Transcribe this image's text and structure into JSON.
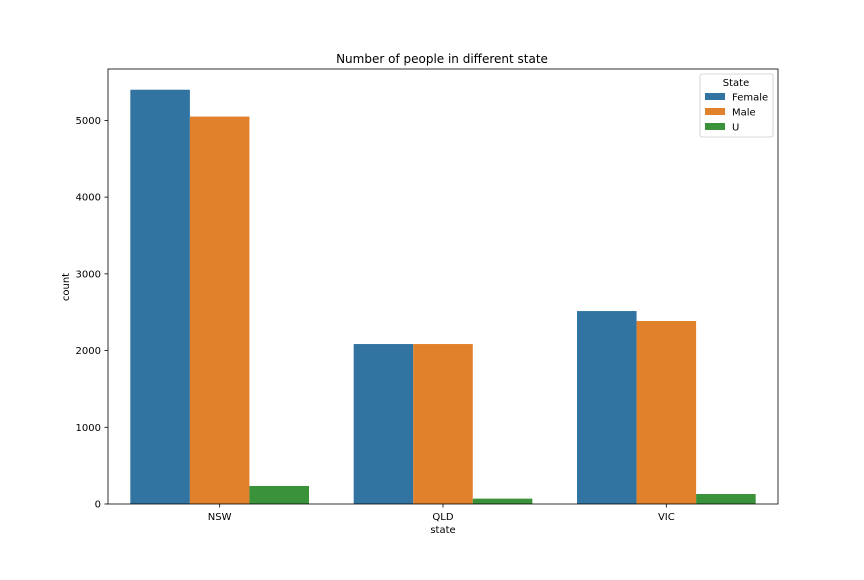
{
  "chart_data": {
    "type": "bar",
    "title": "Number of people in different state",
    "xlabel": "state",
    "ylabel": "count",
    "categories": [
      "NSW",
      "QLD",
      "VIC"
    ],
    "series": [
      {
        "name": "Female",
        "color": "#3274a1",
        "values": [
          5400,
          2085,
          2515
        ]
      },
      {
        "name": "Male",
        "color": "#e1812c",
        "values": [
          5050,
          2085,
          2385
        ]
      },
      {
        "name": "U",
        "color": "#3a923a",
        "values": [
          235,
          70,
          130
        ]
      }
    ],
    "ylim": [
      0,
      5670
    ],
    "yticks": [
      0,
      1000,
      2000,
      3000,
      4000,
      5000
    ],
    "legend": {
      "title": "State",
      "placement": "top-right"
    },
    "grid": false
  }
}
